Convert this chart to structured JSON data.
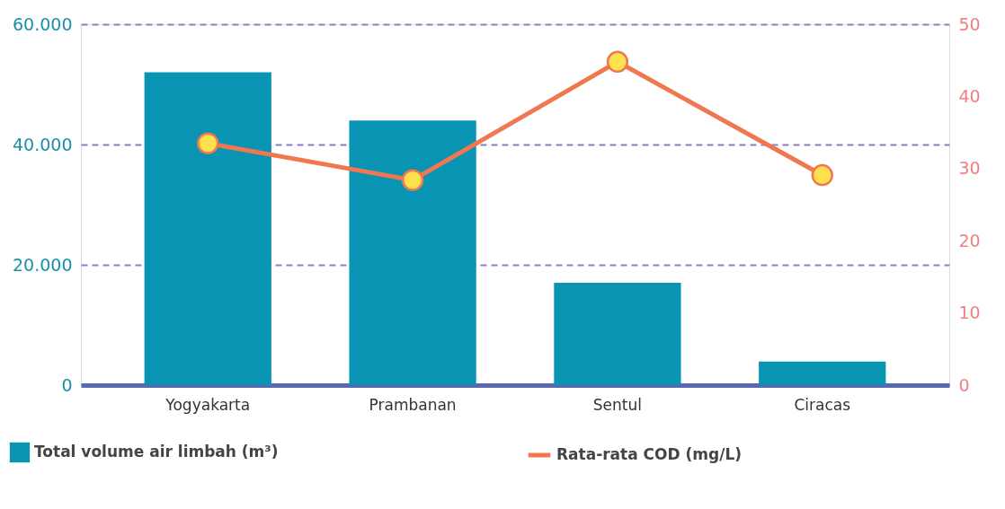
{
  "chart_data": {
    "type": "bar",
    "categories": [
      "Yogyakarta",
      "Prambanan",
      "Sentul",
      "Ciracas"
    ],
    "series": [
      {
        "name": "Total volume air limbah (m³)",
        "color": "#0a94b4",
        "values": [
          52000,
          44000,
          17000,
          3900
        ]
      },
      {
        "name": "Rata-rata COD (mg/L)",
        "type": "line",
        "axis": "y2",
        "color": "#f07850",
        "values": [
          33.5,
          28.4,
          44.8,
          29.1
        ]
      }
    ],
    "ylim": [
      0,
      60000
    ],
    "yticks": [
      0,
      {
        "value": 20000,
        "label": "20.000"
      },
      {
        "value": 40000,
        "label": "40.000"
      },
      {
        "value": 60000,
        "label": "60.000"
      }
    ],
    "y2lim": [
      0,
      50
    ],
    "y2ticks": [
      0,
      10,
      20,
      30,
      40,
      50
    ],
    "grid": "y",
    "legend": "bottom",
    "marker": "circle",
    "line_style": "solid"
  }
}
